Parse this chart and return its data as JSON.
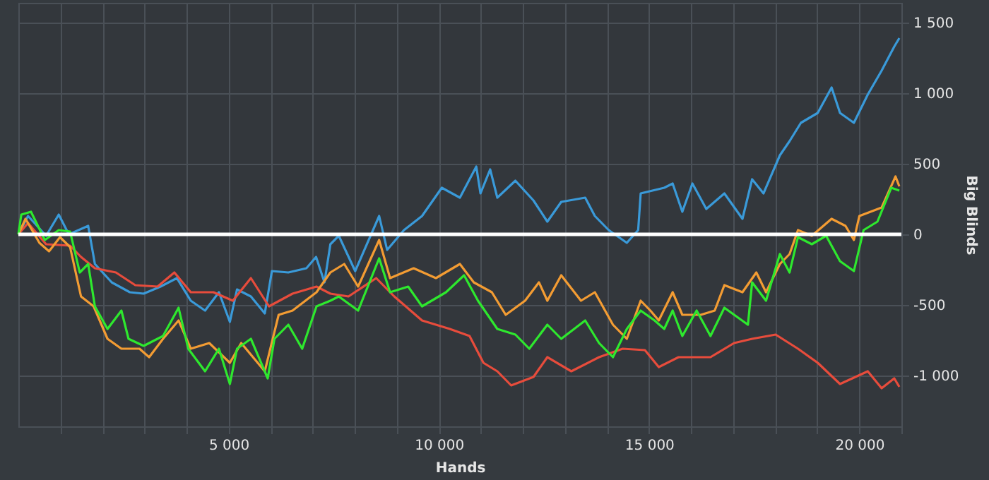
{
  "chart_data": {
    "type": "line",
    "xlabel": "Hands",
    "ylabel": "Big Blinds",
    "xlim": [
      0,
      21000
    ],
    "ylim": [
      -1360,
      1640
    ],
    "xticks": [
      {
        "value": 1000,
        "label": null
      },
      {
        "value": 2000,
        "label": null
      },
      {
        "value": 3000,
        "label": null
      },
      {
        "value": 4000,
        "label": null
      },
      {
        "value": 5000,
        "label": "5 000"
      },
      {
        "value": 6000,
        "label": null
      },
      {
        "value": 7000,
        "label": null
      },
      {
        "value": 8000,
        "label": null
      },
      {
        "value": 9000,
        "label": null
      },
      {
        "value": 10000,
        "label": "10 000"
      },
      {
        "value": 11000,
        "label": null
      },
      {
        "value": 12000,
        "label": null
      },
      {
        "value": 13000,
        "label": null
      },
      {
        "value": 14000,
        "label": null
      },
      {
        "value": 15000,
        "label": "15 000"
      },
      {
        "value": 16000,
        "label": null
      },
      {
        "value": 17000,
        "label": null
      },
      {
        "value": 18000,
        "label": null
      },
      {
        "value": 19000,
        "label": null
      },
      {
        "value": 20000,
        "label": "20 000"
      },
      {
        "value": 21000,
        "label": null
      }
    ],
    "yticks": [
      {
        "value": -1000,
        "label": "-1 000"
      },
      -500,
      0,
      500,
      {
        "value": 1000,
        "label": "1 000"
      },
      {
        "value": 1500,
        "label": "1 500"
      }
    ],
    "grid": true,
    "marker": "none",
    "line_style": "solid",
    "ref_lines": [
      {
        "axis": "y",
        "value": 0,
        "label": null,
        "color": "#ffffff"
      }
    ],
    "series": [
      {
        "color": "#3a9ad9",
        "x": [
          0,
          230,
          660,
          960,
          1200,
          1660,
          1820,
          2220,
          2650,
          2980,
          3380,
          3770,
          4100,
          4440,
          4770,
          5030,
          5200,
          5530,
          5860,
          6030,
          6420,
          6850,
          7080,
          7280,
          7420,
          7620,
          8010,
          8580,
          8770,
          9170,
          9600,
          10070,
          10500,
          10890,
          10990,
          11220,
          11390,
          11820,
          12250,
          12580,
          12910,
          13480,
          13710,
          14040,
          14470,
          14740,
          14800,
          15360,
          15560,
          15790,
          16030,
          16360,
          16790,
          17220,
          17450,
          17720,
          18110,
          18340,
          18610,
          19010,
          19340,
          19540,
          19870,
          20200,
          20530,
          20830,
          20950
        ],
        "values": [
          0,
          130,
          -10,
          140,
          0,
          60,
          -210,
          -340,
          -410,
          -420,
          -370,
          -310,
          -470,
          -540,
          -410,
          -620,
          -390,
          -440,
          -560,
          -260,
          -270,
          -240,
          -160,
          -340,
          -70,
          -10,
          -260,
          130,
          -110,
          30,
          130,
          330,
          260,
          480,
          290,
          460,
          260,
          380,
          240,
          90,
          230,
          260,
          130,
          30,
          -60,
          30,
          290,
          330,
          360,
          160,
          360,
          180,
          290,
          110,
          390,
          290,
          560,
          660,
          790,
          860,
          1040,
          860,
          790,
          990,
          1160,
          1330,
          1390
        ]
      },
      {
        "color": "#e74c3c",
        "x": [
          0,
          230,
          660,
          1230,
          1490,
          1820,
          2320,
          2780,
          3310,
          3710,
          4100,
          4640,
          5100,
          5530,
          5960,
          6520,
          7090,
          7420,
          7850,
          8510,
          8940,
          9600,
          10260,
          10730,
          11060,
          11390,
          11720,
          12250,
          12580,
          13150,
          13810,
          14370,
          14900,
          15230,
          15700,
          16460,
          17020,
          17450,
          18010,
          18540,
          19010,
          19540,
          20200,
          20530,
          20830,
          20950
        ],
        "values": [
          0,
          80,
          -70,
          -80,
          -160,
          -240,
          -270,
          -360,
          -370,
          -270,
          -410,
          -410,
          -470,
          -310,
          -510,
          -420,
          -370,
          -420,
          -440,
          -310,
          -440,
          -610,
          -670,
          -720,
          -910,
          -970,
          -1070,
          -1010,
          -870,
          -970,
          -870,
          -810,
          -820,
          -940,
          -870,
          -870,
          -770,
          -740,
          -710,
          -810,
          -910,
          -1060,
          -970,
          -1090,
          -1020,
          -1080
        ]
      },
      {
        "color": "#f39c33",
        "x": [
          0,
          170,
          500,
          730,
          990,
          1230,
          1490,
          1790,
          2120,
          2450,
          2880,
          3110,
          3440,
          3810,
          4100,
          4540,
          5030,
          5300,
          5860,
          6190,
          6520,
          7090,
          7420,
          7750,
          8080,
          8580,
          8840,
          9400,
          9930,
          10500,
          10830,
          11260,
          11590,
          12050,
          12380,
          12580,
          12910,
          13380,
          13710,
          14140,
          14470,
          14800,
          15030,
          15230,
          15560,
          15790,
          16230,
          16560,
          16790,
          17220,
          17550,
          17780,
          18110,
          18340,
          18540,
          18870,
          19340,
          19670,
          19870,
          20000,
          20530,
          20860,
          20950
        ],
        "values": [
          0,
          110,
          -60,
          -120,
          -20,
          -90,
          -440,
          -510,
          -740,
          -810,
          -810,
          -870,
          -740,
          -610,
          -810,
          -770,
          -910,
          -770,
          -970,
          -570,
          -540,
          -410,
          -270,
          -210,
          -370,
          -40,
          -310,
          -240,
          -310,
          -210,
          -340,
          -410,
          -570,
          -470,
          -340,
          -470,
          -290,
          -470,
          -410,
          -640,
          -740,
          -470,
          -540,
          -610,
          -410,
          -570,
          -570,
          -540,
          -360,
          -410,
          -270,
          -410,
          -210,
          -140,
          30,
          -10,
          110,
          60,
          -40,
          130,
          190,
          410,
          340
        ]
      },
      {
        "color": "#2ee82e",
        "x": [
          0,
          70,
          300,
          630,
          960,
          1230,
          1460,
          1660,
          1820,
          2120,
          2450,
          2620,
          2980,
          3440,
          3810,
          4040,
          4440,
          4770,
          5030,
          5200,
          5530,
          5930,
          6090,
          6420,
          6750,
          7090,
          7420,
          7620,
          8080,
          8580,
          8840,
          9270,
          9600,
          10170,
          10600,
          10930,
          11390,
          11820,
          12150,
          12580,
          12910,
          13480,
          13810,
          14140,
          14470,
          14800,
          15130,
          15360,
          15560,
          15790,
          16130,
          16460,
          16790,
          17350,
          17450,
          17780,
          18110,
          18340,
          18540,
          18870,
          19210,
          19540,
          19870,
          20100,
          20430,
          20760,
          20950
        ],
        "values": [
          0,
          140,
          160,
          -40,
          30,
          20,
          -270,
          -210,
          -510,
          -670,
          -540,
          -740,
          -790,
          -720,
          -520,
          -810,
          -970,
          -810,
          -1060,
          -810,
          -740,
          -1020,
          -740,
          -640,
          -810,
          -510,
          -470,
          -440,
          -540,
          -170,
          -410,
          -370,
          -510,
          -410,
          -290,
          -470,
          -670,
          -710,
          -810,
          -640,
          -740,
          -610,
          -770,
          -870,
          -670,
          -540,
          -610,
          -670,
          -540,
          -720,
          -540,
          -720,
          -520,
          -640,
          -340,
          -470,
          -140,
          -270,
          -20,
          -70,
          -10,
          -190,
          -260,
          30,
          90,
          330,
          310
        ]
      }
    ]
  }
}
